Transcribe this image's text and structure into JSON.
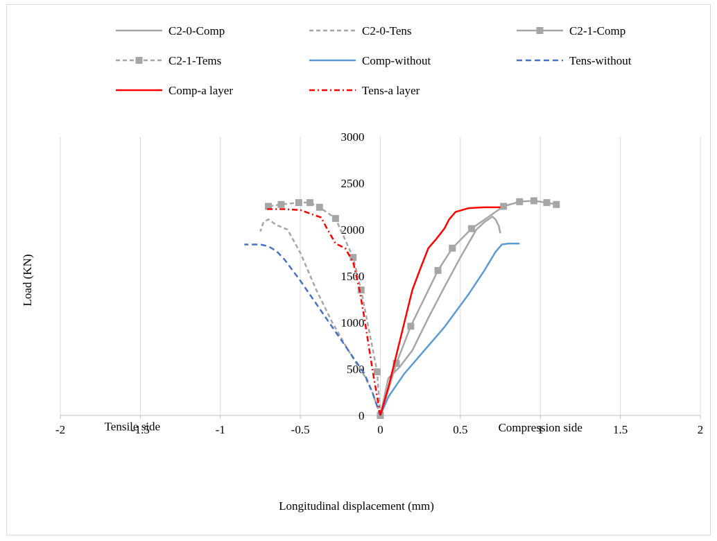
{
  "chart_data": {
    "type": "line",
    "title": "",
    "xlabel": "Longitudinal displacement (mm)",
    "ylabel": "Load (KN)",
    "xlim": [
      -2,
      2
    ],
    "ylim": [
      0,
      3000
    ],
    "xticks": [
      -2,
      -1.5,
      -1,
      -0.5,
      0,
      0.5,
      1,
      1.5,
      2
    ],
    "yticks": [
      0,
      500,
      1000,
      1500,
      2000,
      2500,
      3000
    ],
    "x_tick_labels": [
      "-2",
      "-1.5",
      "-1",
      "-0.5",
      "0",
      "0.5",
      "1",
      "1.5",
      "2"
    ],
    "y_tick_labels": [
      "0",
      "500",
      "1000",
      "1500",
      "2000",
      "2500",
      "3000"
    ],
    "grid": "vertical",
    "legend_position": "top",
    "annotations": [
      {
        "text": "Tensile side",
        "x": -1.55,
        "y": -160
      },
      {
        "text": "Compression side",
        "x": 1.0,
        "y": -170
      }
    ],
    "series": [
      {
        "name": "C2-0-Comp",
        "color": "#a6a6a6",
        "dash": "solid",
        "marker": "none",
        "x": [
          0,
          0.05,
          0.12,
          0.2,
          0.3,
          0.4,
          0.5,
          0.6,
          0.65,
          0.7,
          0.72,
          0.74,
          0.75
        ],
        "y": [
          0,
          400,
          520,
          700,
          1050,
          1380,
          1700,
          2000,
          2080,
          2140,
          2110,
          2040,
          1960
        ]
      },
      {
        "name": "C2-0-Tens",
        "color": "#a6a6a6",
        "dash": "6,4",
        "marker": "none",
        "x": [
          0,
          -0.05,
          -0.1,
          -0.15,
          -0.2,
          -0.3,
          -0.4,
          -0.5,
          -0.58,
          -0.65,
          -0.7,
          -0.73,
          -0.75
        ],
        "y": [
          0,
          250,
          430,
          560,
          700,
          1000,
          1350,
          1750,
          2000,
          2050,
          2110,
          2080,
          1980
        ]
      },
      {
        "name": "C2-1-Comp",
        "color": "#a6a6a6",
        "dash": "solid",
        "marker": "square",
        "x": [
          0,
          0.1,
          0.19,
          0.36,
          0.45,
          0.57,
          0.77,
          0.87,
          0.96,
          1.04,
          1.1
        ],
        "y": [
          0,
          560,
          960,
          1560,
          1800,
          2010,
          2250,
          2300,
          2310,
          2290,
          2270
        ]
      },
      {
        "name": "C2-1-Tems",
        "color": "#a6a6a6",
        "dash": "6,4",
        "marker": "square",
        "x": [
          0,
          -0.02,
          -0.12,
          -0.17,
          -0.28,
          -0.38,
          -0.44,
          -0.51,
          -0.62,
          -0.7
        ],
        "y": [
          0,
          470,
          1350,
          1700,
          2120,
          2240,
          2290,
          2290,
          2270,
          2250
        ]
      },
      {
        "name": "Comp-without",
        "color": "#5b9bd5",
        "dash": "solid",
        "marker": "none",
        "x": [
          0,
          0.05,
          0.15,
          0.25,
          0.4,
          0.55,
          0.65,
          0.72,
          0.76,
          0.8,
          0.87
        ],
        "y": [
          0,
          200,
          450,
          650,
          950,
          1300,
          1560,
          1760,
          1840,
          1850,
          1850
        ]
      },
      {
        "name": "Tens-without",
        "color": "#4472c4",
        "dash": "8,5",
        "marker": "none",
        "x": [
          0,
          -0.05,
          -0.1,
          -0.2,
          -0.3,
          -0.4,
          -0.5,
          -0.6,
          -0.65,
          -0.7,
          -0.75,
          -0.85
        ],
        "y": [
          0,
          250,
          450,
          700,
          950,
          1200,
          1450,
          1680,
          1770,
          1820,
          1840,
          1840
        ]
      },
      {
        "name": "Comp-a layer",
        "color": "#ff0000",
        "dash": "solid",
        "marker": "none",
        "x": [
          0,
          0.05,
          0.1,
          0.15,
          0.2,
          0.25,
          0.3,
          0.35,
          0.4,
          0.43,
          0.47,
          0.55,
          0.65,
          0.75
        ],
        "y": [
          0,
          300,
          650,
          1000,
          1350,
          1580,
          1800,
          1900,
          2010,
          2110,
          2190,
          2230,
          2240,
          2240
        ]
      },
      {
        "name": "Tens-a layer",
        "color": "#ff0000",
        "dash": "8,4,2,4",
        "marker": "none",
        "x": [
          0,
          -0.02,
          -0.05,
          -0.1,
          -0.13,
          -0.17,
          -0.22,
          -0.28,
          -0.33,
          -0.37,
          -0.5,
          -0.6,
          -0.72
        ],
        "y": [
          0,
          200,
          500,
          1050,
          1350,
          1650,
          1800,
          1850,
          2000,
          2130,
          2210,
          2220,
          2220
        ]
      }
    ]
  }
}
